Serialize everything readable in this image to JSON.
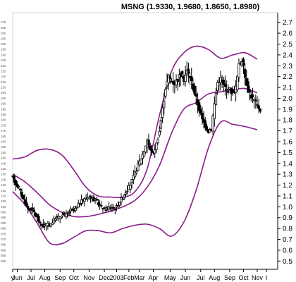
{
  "chart_data": {
    "type": "candlestick",
    "title": "MSNG (1.9330, 1.9680, 1.8650, 1.8980)",
    "ylim": [
      0.45,
      2.75
    ],
    "y_axis_side": "right",
    "grid": false,
    "x_tick_labels": [
      {
        "label": "y",
        "at": 0
      },
      {
        "label": "Jun",
        "at": 3
      },
      {
        "label": "Jul",
        "at": 12
      },
      {
        "label": "Aug",
        "at": 21
      },
      {
        "label": "Sep",
        "at": 31
      },
      {
        "label": "Oct",
        "at": 40
      },
      {
        "label": "Nov",
        "at": 50
      },
      {
        "label": "Dec",
        "at": 60
      },
      {
        "label": "2003",
        "at": 68
      },
      {
        "label": "Feb",
        "at": 76
      },
      {
        "label": "Mar",
        "at": 83
      },
      {
        "label": "Apr",
        "at": 92
      },
      {
        "label": "May",
        "at": 103
      },
      {
        "label": "Jun",
        "at": 113
      },
      {
        "label": "Jul",
        "at": 123
      },
      {
        "label": "Aug",
        "at": 132
      },
      {
        "label": "Sep",
        "at": 142
      },
      {
        "label": "Oct",
        "at": 151
      },
      {
        "label": "Nov",
        "at": 160
      },
      {
        "label": "I",
        "at": 166
      }
    ],
    "bollinger": {
      "upper": [
        [
          0,
          1.44
        ],
        [
          8,
          1.46
        ],
        [
          16,
          1.52
        ],
        [
          24,
          1.53
        ],
        [
          32,
          1.48
        ],
        [
          40,
          1.34
        ],
        [
          48,
          1.18
        ],
        [
          56,
          1.1
        ],
        [
          64,
          1.09
        ],
        [
          72,
          1.09
        ],
        [
          80,
          1.14
        ],
        [
          88,
          1.35
        ],
        [
          96,
          1.84
        ],
        [
          104,
          2.25
        ],
        [
          112,
          2.42
        ],
        [
          120,
          2.48
        ],
        [
          128,
          2.45
        ],
        [
          136,
          2.37
        ],
        [
          144,
          2.4
        ],
        [
          152,
          2.42
        ],
        [
          160,
          2.36
        ]
      ],
      "middle": [
        [
          0,
          1.3
        ],
        [
          8,
          1.23
        ],
        [
          16,
          1.13
        ],
        [
          24,
          1.02
        ],
        [
          32,
          0.95
        ],
        [
          40,
          0.91
        ],
        [
          48,
          0.91
        ],
        [
          56,
          0.93
        ],
        [
          64,
          0.96
        ],
        [
          72,
          1.0
        ],
        [
          80,
          1.06
        ],
        [
          88,
          1.18
        ],
        [
          96,
          1.38
        ],
        [
          104,
          1.68
        ],
        [
          112,
          1.9
        ],
        [
          120,
          1.96
        ],
        [
          128,
          2.04
        ],
        [
          136,
          2.06
        ],
        [
          144,
          2.08
        ],
        [
          152,
          2.09
        ],
        [
          160,
          2.05
        ]
      ],
      "lower": [
        [
          0,
          1.14
        ],
        [
          8,
          1.02
        ],
        [
          16,
          0.85
        ],
        [
          24,
          0.67
        ],
        [
          32,
          0.66
        ],
        [
          40,
          0.72
        ],
        [
          48,
          0.78
        ],
        [
          56,
          0.78
        ],
        [
          64,
          0.76
        ],
        [
          72,
          0.8
        ],
        [
          80,
          0.83
        ],
        [
          88,
          0.84
        ],
        [
          96,
          0.8
        ],
        [
          104,
          0.73
        ],
        [
          112,
          0.86
        ],
        [
          120,
          1.15
        ],
        [
          128,
          1.54
        ],
        [
          136,
          1.78
        ],
        [
          144,
          1.76
        ],
        [
          152,
          1.74
        ],
        [
          160,
          1.71
        ]
      ]
    },
    "price": [
      [
        0,
        1.27
      ],
      [
        2,
        1.21
      ],
      [
        4,
        1.18
      ],
      [
        6,
        1.1
      ],
      [
        8,
        1.04
      ],
      [
        10,
        0.98
      ],
      [
        12,
        0.98
      ],
      [
        14,
        0.95
      ],
      [
        16,
        0.9
      ],
      [
        18,
        0.84
      ],
      [
        20,
        0.82
      ],
      [
        22,
        0.84
      ],
      [
        24,
        0.83
      ],
      [
        26,
        0.86
      ],
      [
        28,
        0.9
      ],
      [
        30,
        0.9
      ],
      [
        32,
        0.93
      ],
      [
        34,
        0.92
      ],
      [
        36,
        0.94
      ],
      [
        38,
        0.97
      ],
      [
        40,
        0.96
      ],
      [
        42,
        1.0
      ],
      [
        44,
        1.04
      ],
      [
        46,
        1.06
      ],
      [
        48,
        1.08
      ],
      [
        50,
        1.1
      ],
      [
        52,
        1.08
      ],
      [
        54,
        1.06
      ],
      [
        56,
        1.03
      ],
      [
        58,
        1.0
      ],
      [
        60,
        0.98
      ],
      [
        62,
        0.99
      ],
      [
        64,
        1.0
      ],
      [
        66,
        0.99
      ],
      [
        68,
        1.0
      ],
      [
        70,
        1.05
      ],
      [
        72,
        1.09
      ],
      [
        74,
        1.14
      ],
      [
        76,
        1.18
      ],
      [
        78,
        1.24
      ],
      [
        80,
        1.31
      ],
      [
        82,
        1.38
      ],
      [
        84,
        1.45
      ],
      [
        86,
        1.52
      ],
      [
        88,
        1.62
      ],
      [
        90,
        1.52
      ],
      [
        92,
        1.5
      ],
      [
        94,
        1.58
      ],
      [
        96,
        1.7
      ],
      [
        98,
        1.9
      ],
      [
        100,
        2.1
      ],
      [
        102,
        2.2
      ],
      [
        104,
        2.16
      ],
      [
        106,
        2.14
      ],
      [
        108,
        2.18
      ],
      [
        110,
        2.22
      ],
      [
        112,
        2.18
      ],
      [
        114,
        2.25
      ],
      [
        116,
        2.2
      ],
      [
        118,
        2.1
      ],
      [
        120,
        2.0
      ],
      [
        122,
        1.9
      ],
      [
        124,
        1.8
      ],
      [
        126,
        1.75
      ],
      [
        128,
        1.7
      ],
      [
        130,
        1.72
      ],
      [
        132,
        1.95
      ],
      [
        134,
        2.15
      ],
      [
        136,
        2.18
      ],
      [
        138,
        2.12
      ],
      [
        140,
        2.08
      ],
      [
        142,
        2.08
      ],
      [
        144,
        2.05
      ],
      [
        146,
        2.1
      ],
      [
        148,
        2.3
      ],
      [
        150,
        2.36
      ],
      [
        152,
        2.2
      ],
      [
        154,
        2.08
      ],
      [
        156,
        2.02
      ],
      [
        158,
        1.98
      ],
      [
        160,
        1.93
      ],
      [
        162,
        1.9
      ]
    ],
    "x_range": [
      0,
      166
    ]
  }
}
